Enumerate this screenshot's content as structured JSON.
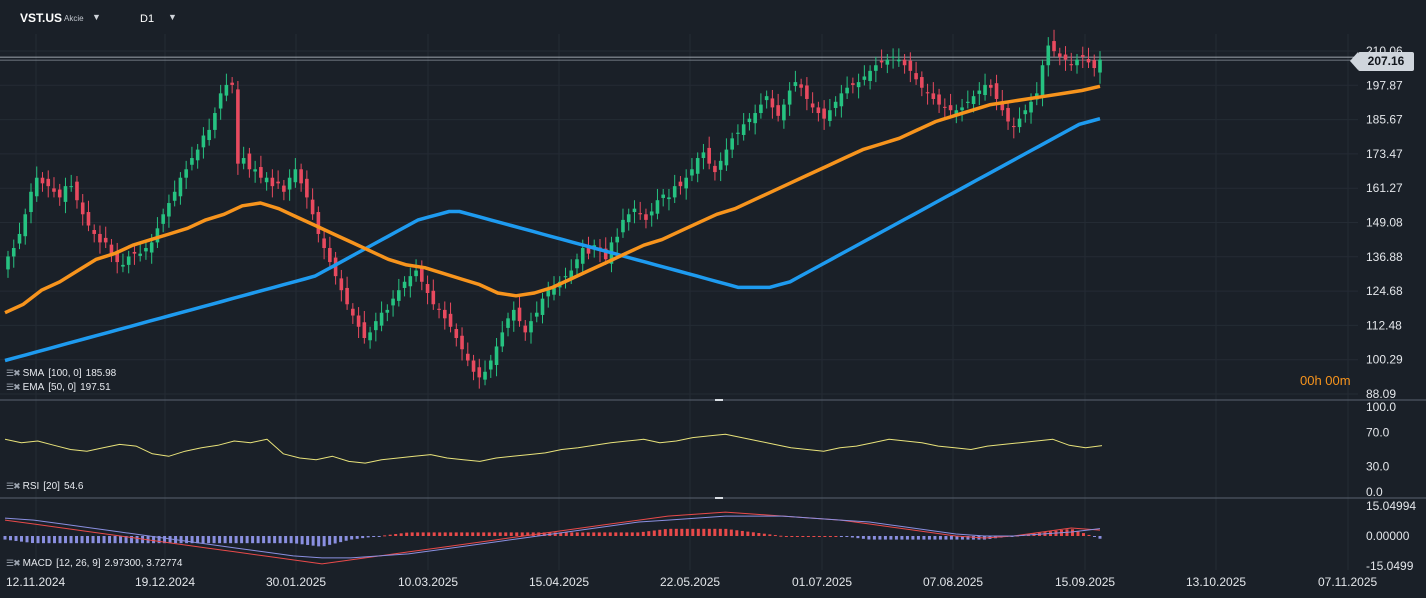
{
  "symbol": {
    "name": "VST.US",
    "type": "Akcie",
    "timeframe": "D1"
  },
  "current_price": "207.16",
  "countdown": "00h 00m",
  "price_axis_labels": [
    "210.06",
    "197.87",
    "185.67",
    "173.47",
    "161.27",
    "149.08",
    "136.88",
    "124.68",
    "112.48",
    "100.29",
    "88.09"
  ],
  "rsi_axis_labels": [
    "100.0",
    "70.0",
    "30.0",
    "0.0"
  ],
  "macd_axis_labels": [
    "15.04994",
    "0.00000",
    "-15.0499"
  ],
  "date_labels": [
    "12.11.2024",
    "19.12.2024",
    "30.01.2025",
    "10.03.2025",
    "15.04.2025",
    "22.05.2025",
    "01.07.2025",
    "07.08.2025",
    "15.09.2025",
    "13.10.2025",
    "07.11.2025"
  ],
  "indicators": {
    "sma": {
      "name": "SMA",
      "params": "[100,  0]",
      "value": "185.98",
      "color": "#1e9bf0"
    },
    "ema": {
      "name": "EMA",
      "params": "[50,  0]",
      "value": "197.51",
      "color": "#f7941d"
    },
    "rsi": {
      "name": "RSI",
      "params": "[20]",
      "value": "54.6",
      "color": "#e8e27a"
    },
    "macd": {
      "name": "MACD",
      "params": "[12,  26,  9]",
      "value": "2.97300,  3.72774",
      "color": "#e84a4a"
    }
  },
  "colors": {
    "background": "#1a2028",
    "bull": "#26c281",
    "bear": "#e84a5f"
  },
  "chart_data": {
    "type": "candlestick",
    "price_range": [
      88.09,
      210.06
    ],
    "candles_close": [
      137,
      140,
      145,
      152,
      160,
      165,
      163,
      162,
      160,
      158,
      162,
      162,
      157,
      152,
      148,
      145,
      142,
      142,
      138,
      135,
      134,
      137,
      138,
      138,
      140,
      142,
      147,
      152,
      156,
      160,
      165,
      168,
      172,
      175,
      180,
      182,
      188,
      195,
      198,
      198,
      170,
      172,
      168,
      168,
      165,
      165,
      162,
      163,
      160,
      165,
      168,
      163,
      158,
      152,
      145,
      140,
      135,
      130,
      125,
      120,
      116,
      112,
      108,
      110,
      114,
      117,
      118,
      122,
      125,
      128,
      130,
      132,
      128,
      124,
      120,
      118,
      115,
      112,
      108,
      104,
      100,
      96,
      94,
      96,
      100,
      105,
      110,
      115,
      118,
      114,
      110,
      114,
      117,
      122,
      125,
      126,
      128,
      130,
      132,
      136,
      140,
      138,
      141,
      139,
      136,
      142,
      144,
      150,
      152,
      154,
      152,
      150,
      153,
      157,
      159,
      158,
      162,
      162,
      165,
      168,
      172,
      174,
      170,
      167,
      171,
      175,
      179,
      181,
      184,
      186,
      188,
      191,
      194,
      190,
      187,
      191,
      196,
      199,
      197,
      193,
      190,
      188,
      186,
      189,
      192,
      195,
      197,
      198,
      199,
      201,
      203,
      205,
      206,
      207,
      208,
      207,
      205,
      203,
      200,
      197,
      195,
      193,
      191,
      190,
      189,
      189,
      190,
      192,
      194,
      196,
      198,
      197,
      193,
      189,
      185,
      183,
      186,
      189,
      192,
      195,
      205,
      212,
      210,
      208,
      207,
      205,
      207,
      208,
      206,
      204,
      207
    ],
    "sma_100": [
      100,
      101,
      102,
      103,
      104,
      105,
      106,
      107,
      108,
      109,
      110,
      111,
      112,
      113,
      114,
      115,
      116,
      117,
      118,
      119,
      120,
      121,
      122,
      123,
      124,
      125,
      126,
      127,
      128,
      129,
      130,
      132,
      134,
      136,
      138,
      140,
      142,
      144,
      146,
      148,
      150,
      151,
      152,
      153,
      153,
      152,
      151,
      150,
      149,
      148,
      147,
      146,
      145,
      144,
      143,
      142,
      141,
      140,
      139,
      138,
      137,
      136,
      135,
      134,
      133,
      132,
      131,
      130,
      129,
      128,
      127,
      126,
      126,
      126,
      126,
      127,
      128,
      130,
      132,
      134,
      136,
      138,
      140,
      142,
      144,
      146,
      148,
      150,
      152,
      154,
      156,
      158,
      160,
      162,
      164,
      166,
      168,
      170,
      172,
      174,
      176,
      178,
      180,
      182,
      184,
      185,
      185.98
    ],
    "ema_50": [
      117,
      120,
      125,
      128,
      132,
      136,
      138,
      141,
      143,
      145,
      147,
      150,
      152,
      155,
      156,
      154,
      151,
      148,
      145,
      142,
      139,
      136,
      134,
      133,
      131,
      129,
      127,
      124,
      123,
      124,
      126,
      129,
      132,
      135,
      138,
      141,
      143,
      146,
      149,
      152,
      154,
      157,
      160,
      163,
      166,
      169,
      172,
      175,
      177,
      179,
      182,
      185,
      187,
      189,
      191,
      192,
      193,
      194,
      195,
      196,
      197.51
    ],
    "rsi_20": [
      62,
      58,
      60,
      55,
      50,
      48,
      52,
      56,
      54,
      45,
      42,
      48,
      52,
      55,
      60,
      58,
      62,
      45,
      40,
      38,
      42,
      36,
      34,
      38,
      40,
      42,
      44,
      40,
      38,
      36,
      40,
      42,
      44,
      46,
      50,
      52,
      55,
      58,
      60,
      62,
      58,
      60,
      64,
      66,
      68,
      64,
      60,
      56,
      52,
      50,
      48,
      52,
      54,
      58,
      62,
      60,
      58,
      54,
      52,
      50,
      54,
      56,
      58,
      60,
      62,
      55,
      52,
      54.6
    ],
    "macd_line": [
      8,
      6,
      4,
      2,
      0,
      -2,
      -4,
      -6,
      -8,
      -10,
      -12,
      -14,
      -12,
      -10,
      -8,
      -6,
      -4,
      -2,
      0,
      2,
      4,
      6,
      8,
      10,
      11,
      12,
      11,
      10,
      9,
      8,
      6,
      4,
      2,
      0,
      -1,
      0,
      2,
      4,
      2.97
    ],
    "macd_signal": [
      9,
      8,
      6,
      4,
      2,
      0,
      -2,
      -4,
      -6,
      -8,
      -10,
      -11,
      -11,
      -10,
      -9,
      -7,
      -5,
      -3,
      -1,
      1,
      3,
      5,
      7,
      8,
      9,
      10,
      10,
      10,
      9,
      8,
      7,
      5,
      3,
      1,
      0,
      0,
      1,
      2,
      3.72774
    ]
  }
}
